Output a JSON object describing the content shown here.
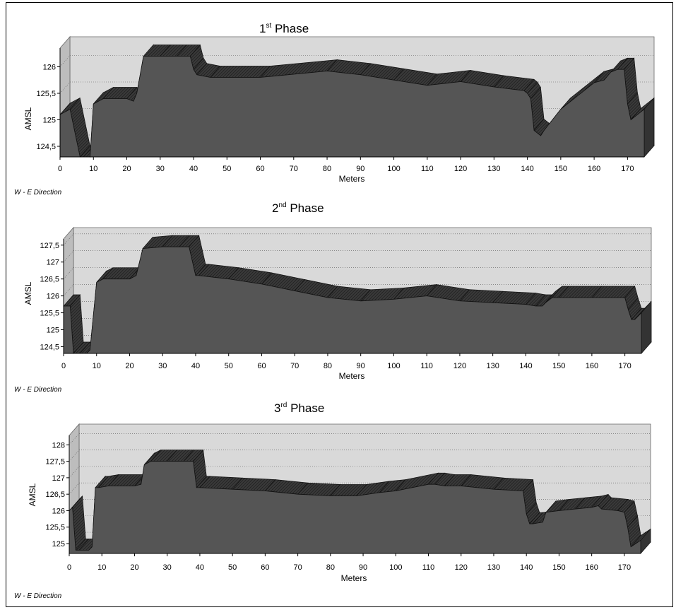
{
  "chart_data": [
    {
      "type": "area",
      "title": "1st Phase",
      "title_main": "1",
      "title_sup": "st",
      "title_rest": " Phase",
      "xlabel": "Meters",
      "ylabel": "AMSL",
      "note": "W - E Direction",
      "xlim": [
        0,
        175
      ],
      "ylim": [
        124.3,
        126.3
      ],
      "x_ticks": [
        0,
        10,
        20,
        30,
        40,
        50,
        60,
        70,
        80,
        90,
        100,
        110,
        120,
        130,
        140,
        150,
        160,
        170
      ],
      "y_ticks": [
        124.5,
        125,
        125.5,
        126
      ],
      "y_tick_labels": [
        "124,5",
        "125",
        "125,5",
        "126"
      ],
      "x": [
        0,
        3,
        6,
        7,
        9,
        10,
        13,
        20,
        22,
        23,
        25,
        30,
        35,
        39,
        40,
        41,
        45,
        60,
        80,
        90,
        100,
        110,
        120,
        130,
        139,
        140,
        141,
        142,
        144,
        145,
        150,
        160,
        163,
        165,
        167,
        169,
        170,
        171,
        175
      ],
      "values": [
        125.1,
        125.2,
        124.3,
        124.3,
        124.3,
        125.3,
        125.4,
        125.4,
        125.35,
        125.5,
        126.2,
        126.2,
        126.2,
        126.2,
        125.95,
        125.85,
        125.8,
        125.8,
        125.92,
        125.85,
        125.75,
        125.65,
        125.72,
        125.62,
        125.55,
        125.5,
        125.4,
        124.8,
        124.7,
        124.8,
        125.2,
        125.7,
        125.75,
        125.9,
        125.95,
        125.95,
        125.3,
        125.0,
        125.2
      ]
    },
    {
      "type": "area",
      "title": "2nd Phase",
      "title_main": "2",
      "title_sup": "nd",
      "title_rest": " Phase",
      "xlabel": "Meters",
      "ylabel": "AMSL",
      "note": "W - E Direction",
      "xlim": [
        0,
        175
      ],
      "ylim": [
        124.3,
        127.6
      ],
      "x_ticks": [
        0,
        10,
        20,
        30,
        40,
        50,
        60,
        70,
        80,
        90,
        100,
        110,
        120,
        130,
        140,
        150,
        160,
        170
      ],
      "y_ticks": [
        124.5,
        125,
        125.5,
        126,
        126.5,
        127,
        127.5
      ],
      "y_tick_labels": [
        "124,5",
        "125",
        "125,5",
        "126",
        "126,5",
        "127",
        "127,5"
      ],
      "x": [
        0,
        2,
        3,
        5,
        7,
        8,
        10,
        12,
        20,
        22,
        24,
        30,
        35,
        38,
        40,
        41,
        50,
        60,
        70,
        80,
        90,
        100,
        110,
        120,
        130,
        140,
        143,
        145,
        146,
        148,
        150,
        160,
        170,
        171,
        172,
        173,
        175
      ],
      "values": [
        125.7,
        125.7,
        124.3,
        124.3,
        124.3,
        124.4,
        126.4,
        126.5,
        126.5,
        126.6,
        127.4,
        127.45,
        127.45,
        127.45,
        126.6,
        126.6,
        126.5,
        126.35,
        126.15,
        125.95,
        125.85,
        125.9,
        126.0,
        125.85,
        125.8,
        125.75,
        125.7,
        125.7,
        125.8,
        125.95,
        125.95,
        125.95,
        125.95,
        125.6,
        125.3,
        125.3,
        125.5
      ]
    },
    {
      "type": "area",
      "title": "3rd Phase",
      "title_main": "3",
      "title_sup": "rd",
      "title_rest": " Phase",
      "xlabel": "Meters",
      "ylabel": "AMSL",
      "note": "W - E Direction",
      "xlim": [
        0,
        175
      ],
      "ylim": [
        124.7,
        128.2
      ],
      "x_ticks": [
        0,
        10,
        20,
        30,
        40,
        50,
        60,
        70,
        80,
        90,
        100,
        110,
        120,
        130,
        140,
        150,
        160,
        170
      ],
      "y_ticks": [
        125,
        125.5,
        126,
        126.5,
        127,
        127.5,
        128
      ],
      "y_tick_labels": [
        "125",
        "125,5",
        "126",
        "126,5",
        "127",
        "127,5",
        "128"
      ],
      "x": [
        0,
        1,
        2,
        3,
        6,
        7,
        8,
        9,
        12,
        20,
        22,
        23,
        25,
        30,
        35,
        38,
        39,
        40,
        50,
        60,
        70,
        80,
        88,
        95,
        100,
        110,
        112,
        115,
        120,
        130,
        139,
        140,
        141,
        142,
        145,
        146,
        150,
        155,
        160,
        162,
        163,
        168,
        170,
        171,
        172,
        175
      ],
      "values": [
        126.0,
        126.1,
        124.8,
        124.8,
        124.8,
        124.9,
        126.7,
        126.7,
        126.75,
        126.75,
        126.8,
        127.4,
        127.5,
        127.5,
        127.5,
        127.5,
        126.7,
        126.7,
        126.65,
        126.6,
        126.5,
        126.45,
        126.45,
        126.55,
        126.6,
        126.8,
        126.8,
        126.75,
        126.75,
        126.65,
        126.6,
        125.9,
        125.6,
        125.6,
        125.65,
        125.95,
        126.0,
        126.05,
        126.1,
        126.15,
        126.05,
        126.0,
        125.95,
        125.5,
        124.9,
        125.1
      ]
    }
  ]
}
